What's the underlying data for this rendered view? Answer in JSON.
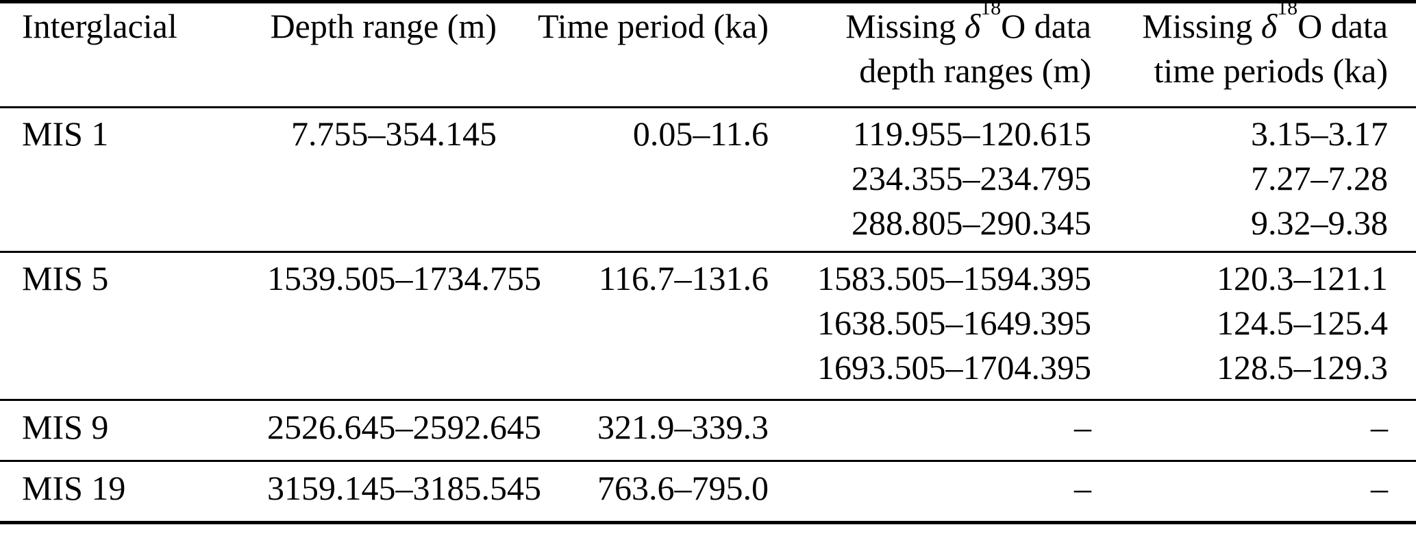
{
  "table": {
    "columns": [
      {
        "label": "Interglacial"
      },
      {
        "label": "Depth range (m)"
      },
      {
        "label": "Time period (ka)"
      },
      {
        "parts": {
          "prefix": "Missing ",
          "delta": "δ",
          "superscript": "18",
          "suffix": "O data"
        },
        "line2": "depth ranges (m)"
      },
      {
        "parts": {
          "prefix": "Missing ",
          "delta": "δ",
          "superscript": "18",
          "suffix": "O data"
        },
        "line2": "time periods (ka)"
      }
    ],
    "rows": [
      {
        "interglacial": "MIS 1",
        "depth_range": "7.755–354.145",
        "time_period": "0.05–11.6",
        "missing_depth_ranges": [
          "119.955–120.615",
          "234.355–234.795",
          "288.805–290.345"
        ],
        "missing_time_periods": [
          "3.15–3.17",
          "7.27–7.28",
          "9.32–9.38"
        ]
      },
      {
        "interglacial": "MIS 5",
        "depth_range": "1539.505–1734.755",
        "time_period": "116.7–131.6",
        "missing_depth_ranges": [
          "1583.505–1594.395",
          "1638.505–1649.395",
          "1693.505–1704.395"
        ],
        "missing_time_periods": [
          "120.3–121.1",
          "124.5–125.4",
          "128.5–129.3"
        ]
      },
      {
        "interglacial": "MIS 9",
        "depth_range": "2526.645–2592.645",
        "time_period": "321.9–339.3",
        "missing_depth_ranges": [
          "–"
        ],
        "missing_time_periods": [
          "–"
        ]
      },
      {
        "interglacial": "MIS 19",
        "depth_range": "3159.145–3185.545",
        "time_period": "763.6–795.0",
        "missing_depth_ranges": [
          "–"
        ],
        "missing_time_periods": [
          "–"
        ]
      }
    ]
  },
  "colors": {
    "text": "#000000",
    "background": "#ffffff",
    "rule": "#000000"
  }
}
